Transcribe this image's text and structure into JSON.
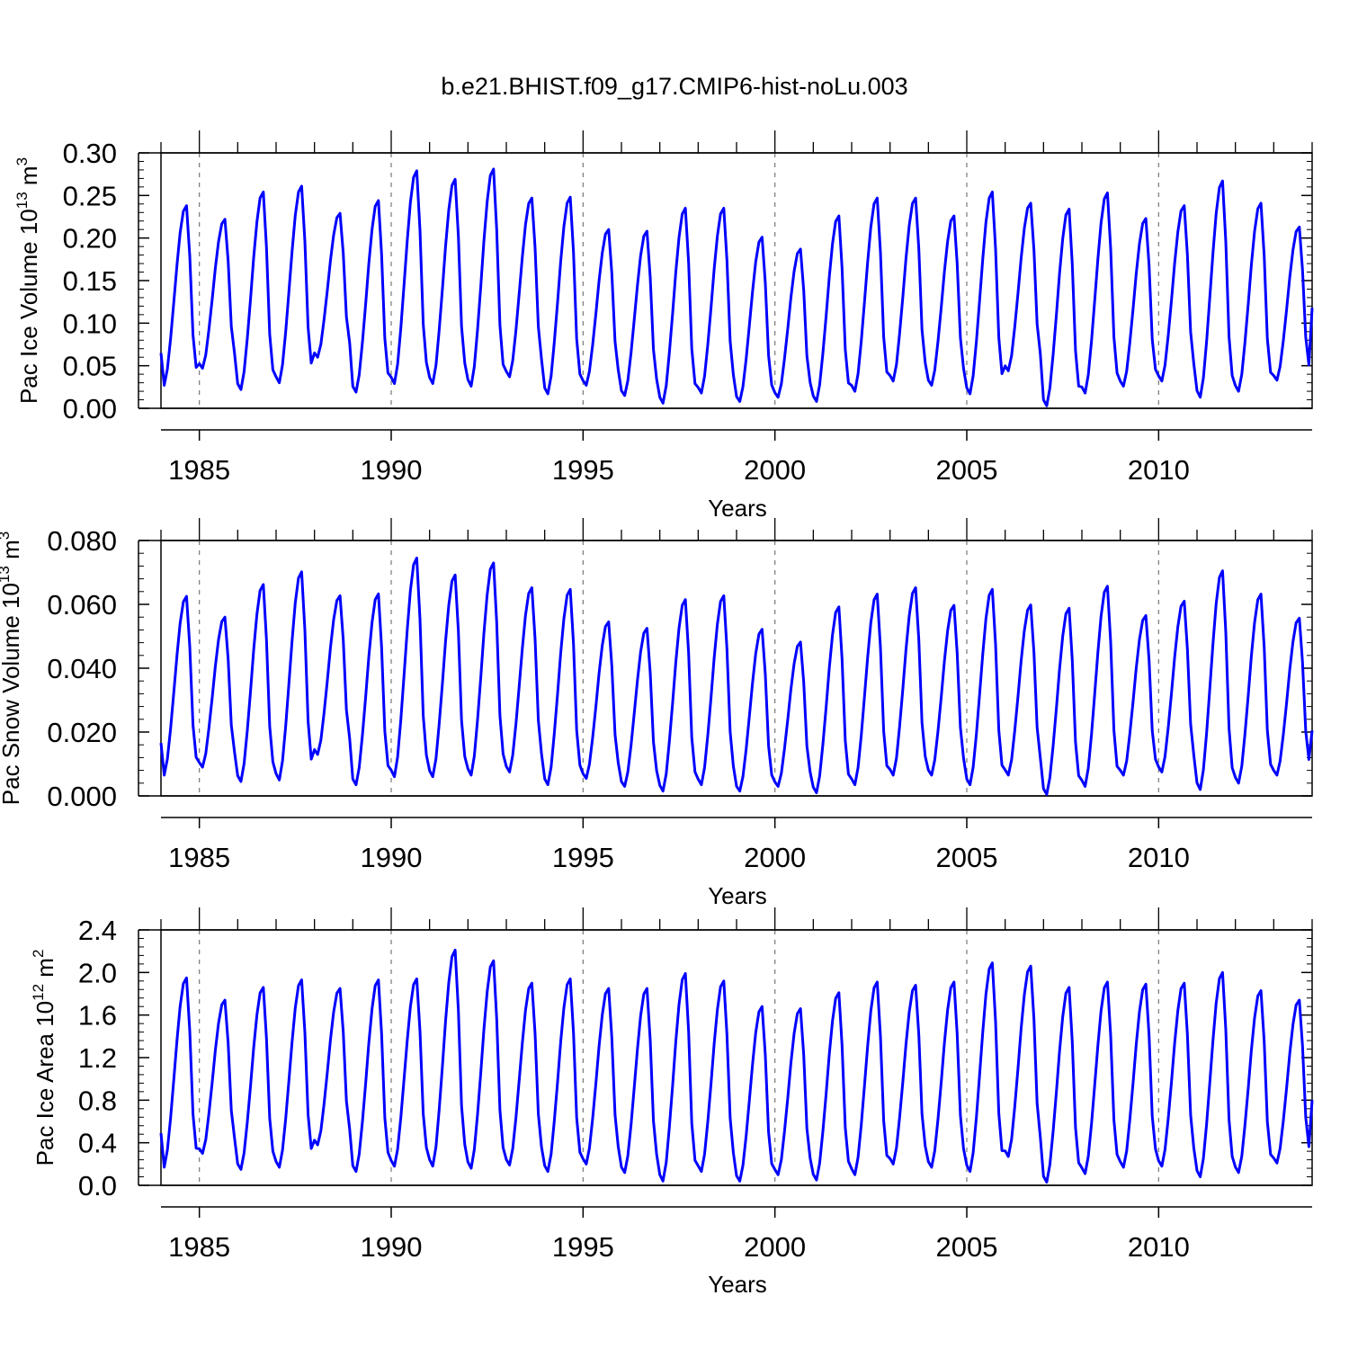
{
  "figure": {
    "title": "b.e21.BHIST.f09_g17.CMIP6-hist-noLu.003",
    "line_color": "#0000ff"
  },
  "chart_data": [
    {
      "type": "line",
      "ylabel": "Pac Ice Volume 10",
      "ylabel_exp": "13",
      "ylabel_unit": " m",
      "ylabel_unit_exp": "3",
      "xlabel": "Years",
      "xlim": [
        1984.0,
        2014.0
      ],
      "ylim": [
        0.0,
        0.3
      ],
      "yticks": [
        0.0,
        0.05,
        0.1,
        0.15,
        0.2,
        0.25,
        0.3
      ],
      "ytick_labels": [
        "0.00",
        "0.05",
        "0.10",
        "0.15",
        "0.20",
        "0.25",
        "0.30"
      ],
      "xticks": [
        1985,
        1990,
        1995,
        2000,
        2005,
        2010
      ],
      "xtick_labels": [
        "1985",
        "1990",
        "1995",
        "2000",
        "2005",
        "2010"
      ],
      "grid": "dashed-vertical-at-major-x",
      "start": 1984.0,
      "max": [
        0.238,
        0.222,
        0.254,
        0.261,
        0.229,
        0.244,
        0.279,
        0.269,
        0.281,
        0.247,
        0.248,
        0.21,
        0.208,
        0.235,
        0.235,
        0.201,
        0.187,
        0.226,
        0.247,
        0.247,
        0.226,
        0.254,
        0.241,
        0.234,
        0.253,
        0.223,
        0.238,
        0.267,
        0.241,
        0.213
      ],
      "min": [
        0.027,
        0.047,
        0.022,
        0.03,
        0.06,
        0.019,
        0.029,
        0.029,
        0.026,
        0.037,
        0.017,
        0.027,
        0.015,
        0.006,
        0.018,
        0.008,
        0.013,
        0.008,
        0.02,
        0.032,
        0.027,
        0.017,
        0.044,
        0.003,
        0.018,
        0.026,
        0.032,
        0.013,
        0.02,
        0.033
      ],
      "end_value": 0.118
    },
    {
      "type": "line",
      "ylabel": "Pac Snow Volume 10",
      "ylabel_exp": "13",
      "ylabel_unit": " m",
      "ylabel_unit_exp": "3",
      "xlabel": "Years",
      "xlim": [
        1984.0,
        2014.0
      ],
      "ylim": [
        0.0,
        0.08
      ],
      "yticks": [
        0.0,
        0.02,
        0.04,
        0.06,
        0.08
      ],
      "ytick_labels": [
        "0.000",
        "0.020",
        "0.040",
        "0.060",
        "0.080"
      ],
      "xticks": [
        1985,
        1990,
        1995,
        2000,
        2005,
        2010
      ],
      "xtick_labels": [
        "1985",
        "1990",
        "1995",
        "2000",
        "2005",
        "2010"
      ],
      "grid": "dashed-vertical-at-major-x",
      "start": 1984.0,
      "max": [
        0.0625,
        0.056,
        0.0662,
        0.0702,
        0.0627,
        0.0633,
        0.0745,
        0.0692,
        0.073,
        0.0652,
        0.0647,
        0.0545,
        0.0525,
        0.0615,
        0.0627,
        0.0522,
        0.0482,
        0.0592,
        0.0632,
        0.0652,
        0.0597,
        0.0647,
        0.0598,
        0.0588,
        0.0657,
        0.0565,
        0.061,
        0.0705,
        0.0632,
        0.0557
      ],
      "min": [
        0.0065,
        0.009,
        0.0045,
        0.005,
        0.013,
        0.0035,
        0.006,
        0.006,
        0.0065,
        0.0075,
        0.0035,
        0.0055,
        0.003,
        0.0015,
        0.0035,
        0.0015,
        0.003,
        0.001,
        0.0035,
        0.0065,
        0.0065,
        0.0035,
        0.0065,
        0.0005,
        0.003,
        0.0065,
        0.0075,
        0.002,
        0.004,
        0.0065
      ],
      "end_value": 0.0205
    },
    {
      "type": "line",
      "ylabel": "Pac Ice Area 10",
      "ylabel_exp": "12",
      "ylabel_unit": " m",
      "ylabel_unit_exp": "2",
      "xlabel": "Years",
      "xlim": [
        1984.0,
        2014.0
      ],
      "ylim": [
        0.0,
        2.4
      ],
      "yticks": [
        0.0,
        0.4,
        0.8,
        1.2,
        1.6,
        2.0,
        2.4
      ],
      "ytick_labels": [
        "0.0",
        "0.4",
        "0.8",
        "1.2",
        "1.6",
        "2.0",
        "2.4"
      ],
      "xticks": [
        1985,
        1990,
        1995,
        2000,
        2005,
        2010
      ],
      "xtick_labels": [
        "1985",
        "1990",
        "1995",
        "2000",
        "2005",
        "2010"
      ],
      "grid": "dashed-vertical-at-major-x",
      "start": 1984.0,
      "max": [
        1.95,
        1.74,
        1.86,
        1.93,
        1.85,
        1.93,
        1.94,
        2.21,
        2.11,
        1.9,
        1.94,
        1.85,
        1.85,
        1.99,
        1.92,
        1.68,
        1.66,
        1.81,
        1.91,
        1.88,
        1.91,
        2.09,
        2.06,
        1.86,
        1.91,
        1.89,
        1.9,
        2.0,
        1.83,
        1.74
      ],
      "min": [
        0.17,
        0.3,
        0.15,
        0.17,
        0.38,
        0.13,
        0.18,
        0.18,
        0.16,
        0.19,
        0.13,
        0.2,
        0.12,
        0.04,
        0.13,
        0.04,
        0.1,
        0.05,
        0.1,
        0.2,
        0.17,
        0.13,
        0.27,
        0.03,
        0.11,
        0.17,
        0.18,
        0.08,
        0.12,
        0.21
      ],
      "end_value": 0.8
    }
  ]
}
